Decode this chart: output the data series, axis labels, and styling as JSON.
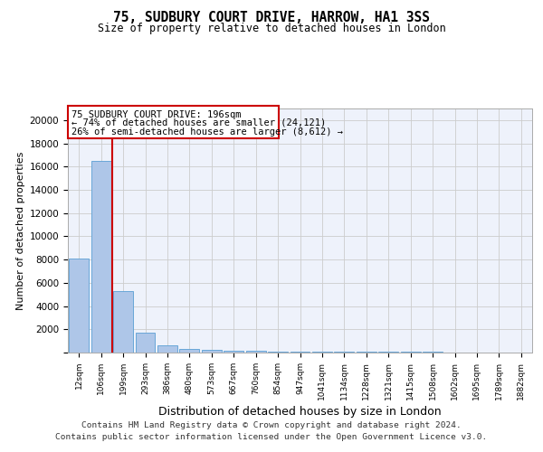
{
  "title1": "75, SUDBURY COURT DRIVE, HARROW, HA1 3SS",
  "title2": "Size of property relative to detached houses in London",
  "xlabel": "Distribution of detached houses by size in London",
  "ylabel": "Number of detached properties",
  "bins": [
    "12sqm",
    "106sqm",
    "199sqm",
    "293sqm",
    "386sqm",
    "480sqm",
    "573sqm",
    "667sqm",
    "760sqm",
    "854sqm",
    "947sqm",
    "1041sqm",
    "1134sqm",
    "1228sqm",
    "1321sqm",
    "1415sqm",
    "1508sqm",
    "1602sqm",
    "1695sqm",
    "1789sqm",
    "1882sqm"
  ],
  "values": [
    8100,
    16500,
    5300,
    1750,
    650,
    350,
    220,
    150,
    120,
    100,
    90,
    80,
    70,
    60,
    50,
    45,
    40,
    35,
    30,
    25,
    20
  ],
  "bar_color": "#aec6e8",
  "bar_edge_color": "#5a9fd4",
  "annotation_title": "75 SUDBURY COURT DRIVE: 196sqm",
  "annotation_line1": "← 74% of detached houses are smaller (24,121)",
  "annotation_line2": "26% of semi-detached houses are larger (8,612) →",
  "red_line_color": "#cc0000",
  "annotation_box_color": "#cc0000",
  "background_color": "#eef2fb",
  "footer1": "Contains HM Land Registry data © Crown copyright and database right 2024.",
  "footer2": "Contains public sector information licensed under the Open Government Licence v3.0.",
  "ylim": [
    0,
    21000
  ],
  "yticks": [
    0,
    2000,
    4000,
    6000,
    8000,
    10000,
    12000,
    14000,
    16000,
    18000,
    20000
  ]
}
